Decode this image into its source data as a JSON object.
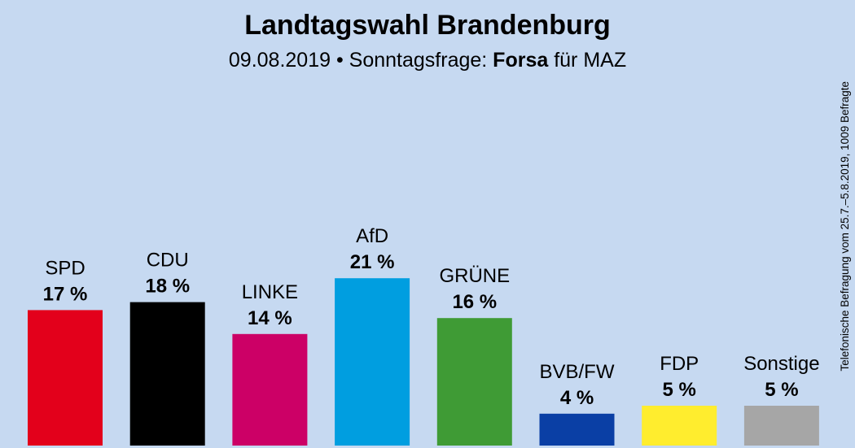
{
  "header": {
    "title": "Landtagswahl Brandenburg",
    "subtitle_pre": "09.08.2019 • Sonntagsfrage: ",
    "subtitle_institute": "Forsa",
    "subtitle_post": " für MAZ"
  },
  "side_note": "Telefonische Befragung vom 25.7.–5.8.2019, 1009 Befragte",
  "chart_data": {
    "type": "bar",
    "title": "Landtagswahl Brandenburg",
    "subtitle": "09.08.2019 • Sonntagsfrage: Forsa für MAZ",
    "categories": [
      "SPD",
      "CDU",
      "LINKE",
      "AfD",
      "GRÜNE",
      "BVB/FW",
      "FDP",
      "Sonstige"
    ],
    "values": [
      17,
      18,
      14,
      21,
      16,
      4,
      5,
      5
    ],
    "value_labels": [
      "17 %",
      "18 %",
      "14 %",
      "21 %",
      "16 %",
      "4 %",
      "5 %",
      "5 %"
    ],
    "colors": [
      "#e3001b",
      "#000000",
      "#cc0066",
      "#009ee0",
      "#3f9b35",
      "#0a3fa5",
      "#ffed2e",
      "#a6a6a6"
    ],
    "unit": "%",
    "xlabel": "",
    "ylabel": "",
    "ylim": [
      0,
      21
    ],
    "grid": false,
    "legend": "none"
  }
}
